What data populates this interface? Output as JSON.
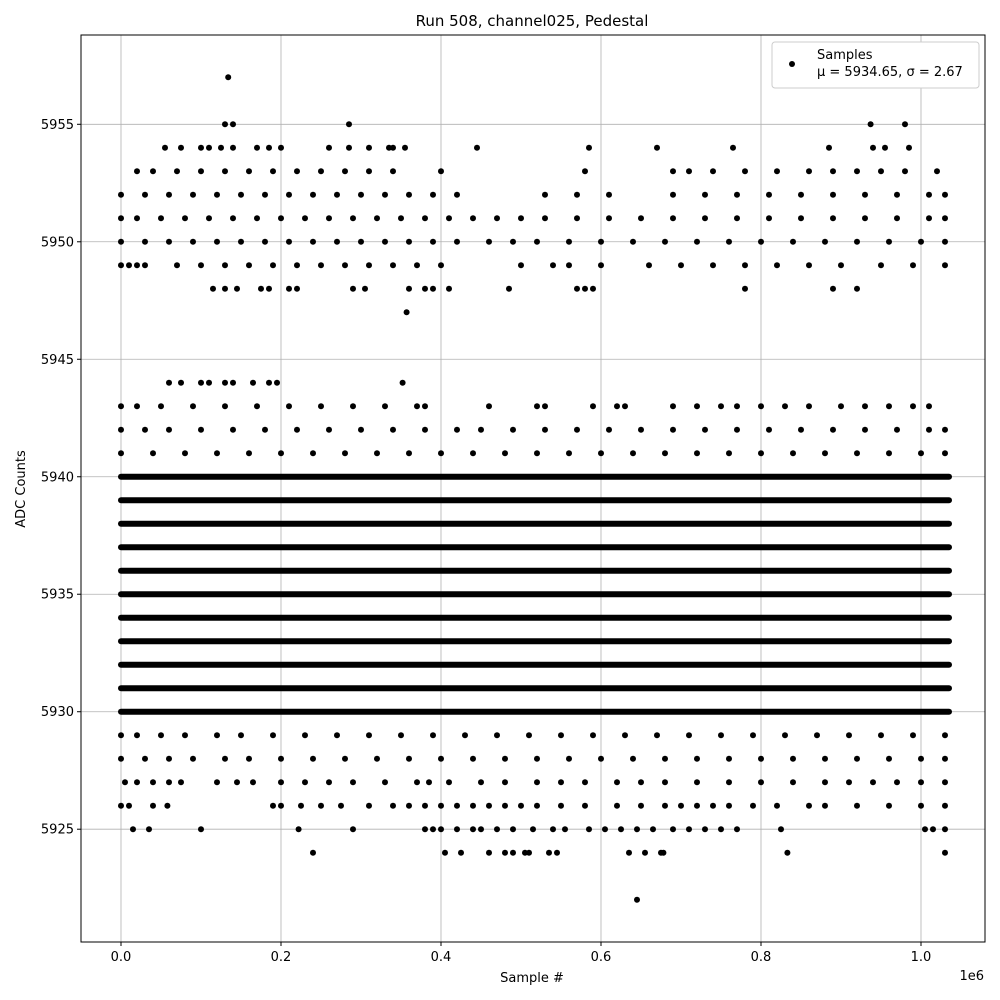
{
  "chart_data": {
    "type": "scatter",
    "title": "Run 508, channel025, Pedestal",
    "xlabel": "Sample #",
    "ylabel": "ADC Counts",
    "x_offset_label": "1e6",
    "xlim": [
      -0.05,
      1.08
    ],
    "ylim": [
      5920.2,
      5958.8
    ],
    "x_ticks": [
      0.0,
      0.2,
      0.4,
      0.6,
      0.8,
      1.0
    ],
    "x_tick_labels": [
      "0.0",
      "0.2",
      "0.4",
      "0.6",
      "0.8",
      "1.0"
    ],
    "y_ticks": [
      5925,
      5930,
      5935,
      5940,
      5945,
      5950,
      5955
    ],
    "y_tick_labels": [
      "5925",
      "5930",
      "5935",
      "5940",
      "5945",
      "5950",
      "5955"
    ],
    "grid": true,
    "legend_position": "top-right",
    "x_range": [
      0.0,
      1.035
    ],
    "series": [
      {
        "name": "Samples",
        "stats_label": "μ = 5934.65, σ = 2.67",
        "color": "#000000",
        "marker": "point",
        "solid_levels": [
          5930,
          5931,
          5932,
          5933,
          5934,
          5935,
          5936,
          5937,
          5938,
          5939,
          5940
        ],
        "sparse_levels": [
          {
            "y": 5924,
            "x": [
              0.24,
              0.405,
              0.425,
              0.46,
              0.48,
              0.49,
              0.505,
              0.51,
              0.535,
              0.545,
              0.635,
              0.655,
              0.675,
              0.678,
              0.833,
              1.03
            ]
          },
          {
            "y": 5925,
            "x": [
              0.015,
              0.035,
              0.1,
              0.222,
              0.29,
              0.38,
              0.39,
              0.4,
              0.42,
              0.44,
              0.45,
              0.47,
              0.49,
              0.515,
              0.54,
              0.555,
              0.585,
              0.605,
              0.625,
              0.645,
              0.665,
              0.69,
              0.71,
              0.73,
              0.75,
              0.77,
              0.825,
              1.005,
              1.015,
              1.03
            ]
          },
          {
            "y": 5926,
            "x": [
              0.0,
              0.01,
              0.04,
              0.058,
              0.19,
              0.2,
              0.225,
              0.25,
              0.275,
              0.31,
              0.34,
              0.36,
              0.38,
              0.4,
              0.42,
              0.44,
              0.46,
              0.48,
              0.5,
              0.52,
              0.55,
              0.58,
              0.62,
              0.65,
              0.68,
              0.7,
              0.72,
              0.74,
              0.76,
              0.79,
              0.82,
              0.86,
              0.88,
              0.92,
              0.96,
              1.0,
              1.03
            ]
          },
          {
            "y": 5927,
            "x": [
              0.005,
              0.02,
              0.04,
              0.06,
              0.075,
              0.12,
              0.145,
              0.165,
              0.2,
              0.23,
              0.26,
              0.29,
              0.33,
              0.37,
              0.385,
              0.41,
              0.45,
              0.48,
              0.52,
              0.55,
              0.58,
              0.62,
              0.65,
              0.68,
              0.72,
              0.76,
              0.8,
              0.84,
              0.88,
              0.91,
              0.94,
              0.97,
              1.0,
              1.03
            ]
          },
          {
            "y": 5928,
            "x": [
              0.0,
              0.03,
              0.06,
              0.09,
              0.13,
              0.16,
              0.2,
              0.24,
              0.28,
              0.32,
              0.36,
              0.4,
              0.44,
              0.48,
              0.52,
              0.56,
              0.6,
              0.64,
              0.68,
              0.72,
              0.76,
              0.8,
              0.84,
              0.88,
              0.92,
              0.96,
              1.0,
              1.03
            ]
          },
          {
            "y": 5929,
            "x": [
              0.0,
              0.02,
              0.05,
              0.08,
              0.12,
              0.15,
              0.19,
              0.23,
              0.27,
              0.31,
              0.35,
              0.39,
              0.43,
              0.47,
              0.51,
              0.55,
              0.59,
              0.63,
              0.67,
              0.71,
              0.75,
              0.79,
              0.83,
              0.87,
              0.91,
              0.95,
              0.99,
              1.03
            ]
          },
          {
            "y": 5941,
            "x": [
              0.0,
              0.04,
              0.08,
              0.12,
              0.16,
              0.2,
              0.24,
              0.28,
              0.32,
              0.36,
              0.4,
              0.44,
              0.48,
              0.52,
              0.56,
              0.6,
              0.64,
              0.68,
              0.72,
              0.76,
              0.8,
              0.84,
              0.88,
              0.92,
              0.96,
              1.0,
              1.03
            ]
          },
          {
            "y": 5942,
            "x": [
              0.0,
              0.03,
              0.06,
              0.1,
              0.14,
              0.18,
              0.22,
              0.26,
              0.3,
              0.34,
              0.38,
              0.42,
              0.45,
              0.49,
              0.53,
              0.57,
              0.61,
              0.65,
              0.69,
              0.73,
              0.77,
              0.81,
              0.85,
              0.89,
              0.93,
              0.97,
              1.01,
              1.03
            ]
          },
          {
            "y": 5943,
            "x": [
              0.0,
              0.02,
              0.05,
              0.09,
              0.13,
              0.17,
              0.21,
              0.25,
              0.29,
              0.33,
              0.37,
              0.38,
              0.46,
              0.52,
              0.53,
              0.59,
              0.62,
              0.63,
              0.69,
              0.72,
              0.75,
              0.77,
              0.8,
              0.83,
              0.86,
              0.9,
              0.93,
              0.96,
              0.99,
              1.01
            ]
          },
          {
            "y": 5944,
            "x": [
              0.06,
              0.075,
              0.1,
              0.11,
              0.13,
              0.14,
              0.165,
              0.185,
              0.195,
              0.352
            ]
          },
          {
            "y": 5947,
            "x": [
              0.357
            ]
          },
          {
            "y": 5948,
            "x": [
              0.115,
              0.13,
              0.145,
              0.175,
              0.185,
              0.21,
              0.22,
              0.29,
              0.305,
              0.36,
              0.38,
              0.39,
              0.41,
              0.485,
              0.57,
              0.58,
              0.59,
              0.78,
              0.89,
              0.92
            ]
          },
          {
            "y": 5949,
            "x": [
              0.0,
              0.01,
              0.02,
              0.03,
              0.07,
              0.1,
              0.13,
              0.16,
              0.19,
              0.22,
              0.25,
              0.28,
              0.31,
              0.34,
              0.37,
              0.4,
              0.5,
              0.54,
              0.56,
              0.6,
              0.66,
              0.7,
              0.74,
              0.78,
              0.82,
              0.86,
              0.9,
              0.95,
              0.99,
              1.03
            ]
          },
          {
            "y": 5950,
            "x": [
              0.0,
              0.03,
              0.06,
              0.09,
              0.12,
              0.15,
              0.18,
              0.21,
              0.24,
              0.27,
              0.3,
              0.33,
              0.36,
              0.39,
              0.42,
              0.46,
              0.49,
              0.52,
              0.56,
              0.6,
              0.64,
              0.68,
              0.72,
              0.76,
              0.8,
              0.84,
              0.88,
              0.92,
              0.96,
              1.0,
              1.03
            ]
          },
          {
            "y": 5951,
            "x": [
              0.0,
              0.02,
              0.05,
              0.08,
              0.11,
              0.14,
              0.17,
              0.2,
              0.23,
              0.26,
              0.29,
              0.32,
              0.35,
              0.38,
              0.41,
              0.44,
              0.47,
              0.5,
              0.53,
              0.57,
              0.61,
              0.65,
              0.69,
              0.73,
              0.77,
              0.81,
              0.85,
              0.89,
              0.93,
              0.97,
              1.01,
              1.03
            ]
          },
          {
            "y": 5952,
            "x": [
              0.0,
              0.03,
              0.06,
              0.09,
              0.12,
              0.15,
              0.18,
              0.21,
              0.24,
              0.27,
              0.3,
              0.33,
              0.36,
              0.39,
              0.42,
              0.53,
              0.57,
              0.61,
              0.69,
              0.73,
              0.77,
              0.81,
              0.85,
              0.89,
              0.93,
              0.97,
              1.01,
              1.03
            ]
          },
          {
            "y": 5953,
            "x": [
              0.02,
              0.04,
              0.07,
              0.1,
              0.13,
              0.16,
              0.19,
              0.22,
              0.25,
              0.28,
              0.31,
              0.34,
              0.4,
              0.58,
              0.69,
              0.71,
              0.74,
              0.78,
              0.82,
              0.86,
              0.89,
              0.92,
              0.95,
              0.98,
              1.02
            ]
          },
          {
            "y": 5954,
            "x": [
              0.055,
              0.075,
              0.1,
              0.11,
              0.125,
              0.14,
              0.17,
              0.185,
              0.2,
              0.26,
              0.285,
              0.31,
              0.335,
              0.34,
              0.355,
              0.445,
              0.585,
              0.67,
              0.765,
              0.885,
              0.94,
              0.955,
              0.985
            ]
          },
          {
            "y": 5955,
            "x": [
              0.13,
              0.14,
              0.285,
              0.937,
              0.98
            ]
          },
          {
            "y": 5957,
            "x": [
              0.134
            ]
          },
          {
            "y": 5922,
            "x": [
              0.645
            ]
          }
        ]
      }
    ]
  }
}
